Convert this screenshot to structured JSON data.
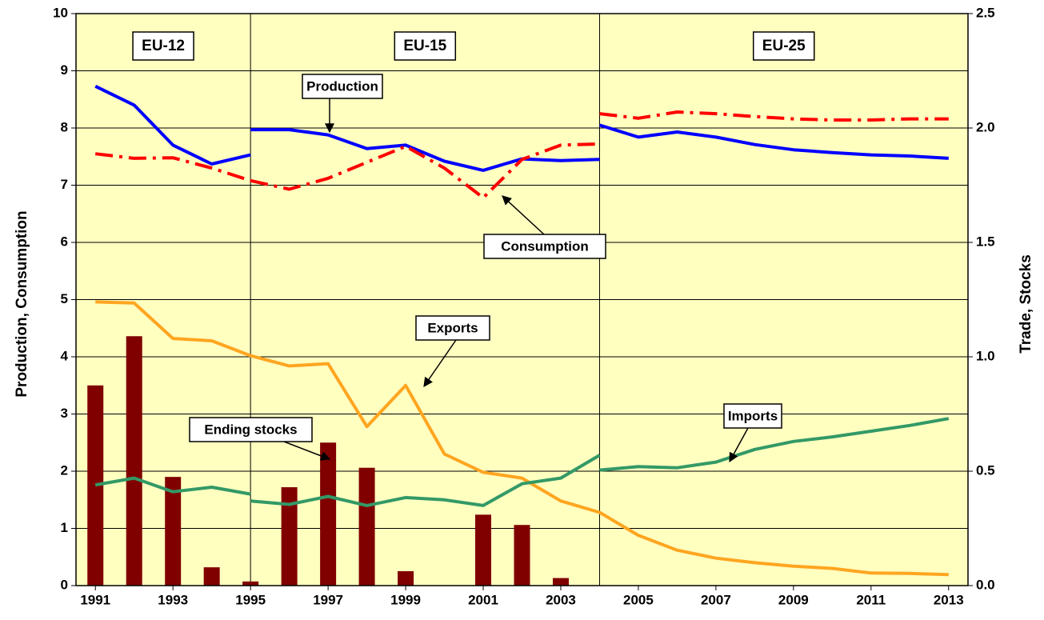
{
  "chart_data": {
    "type": "line",
    "ylabel": "Production, Consumption",
    "y2label": "Trade, Stocks",
    "xlim": [
      1990.5,
      2013.5
    ],
    "xticks": [
      1991,
      1993,
      1995,
      1997,
      1999,
      2001,
      2003,
      2005,
      2007,
      2009,
      2011,
      2013
    ],
    "ylim": [
      0,
      10
    ],
    "yticks": [
      0,
      1,
      2,
      3,
      4,
      5,
      6,
      7,
      8,
      9,
      10
    ],
    "y2lim": [
      0,
      2.5
    ],
    "y2ticks": [
      {
        "value": 0,
        "label": "0.0"
      },
      0.5,
      {
        "value": 1,
        "label": "1.0"
      },
      1.5,
      {
        "value": 2,
        "label": "2.0"
      },
      2.5
    ],
    "grid": true,
    "background": "#ffffc0",
    "regions": [
      "EU-12",
      "EU-15",
      "EU-25"
    ],
    "dividers": [
      1995,
      2004
    ],
    "series": [
      {
        "name": "Production",
        "type": "line",
        "color": "#0000ff",
        "dash": "solid",
        "x": [
          1991,
          1992,
          1993,
          1994,
          1995,
          null,
          1995,
          1996,
          1997,
          1998,
          1999,
          2000,
          2001,
          2002,
          2003,
          2004,
          null,
          2004,
          2005,
          2006,
          2007,
          2008,
          2009,
          2010,
          2011,
          2012,
          2013
        ],
        "values": [
          8.73,
          8.4,
          7.7,
          7.37,
          7.53,
          null,
          7.97,
          7.97,
          7.88,
          7.64,
          7.7,
          7.42,
          7.26,
          7.46,
          7.43,
          7.45,
          null,
          8.05,
          7.84,
          7.93,
          7.84,
          7.71,
          7.62,
          7.57,
          7.53,
          7.51,
          7.47
        ]
      },
      {
        "name": "Consumption",
        "type": "line",
        "color": "#ff0000",
        "dash": "dashdot",
        "x": [
          1991,
          1992,
          1993,
          1994,
          1995,
          null,
          1995,
          1996,
          1997,
          1998,
          1999,
          2000,
          2001,
          2002,
          2003,
          2004,
          null,
          2004,
          2005,
          2006,
          2007,
          2008,
          2009,
          2010,
          2011,
          2012,
          2013
        ],
        "values": [
          7.55,
          7.47,
          7.48,
          7.3,
          7.08,
          null,
          7.08,
          6.93,
          7.12,
          7.4,
          7.68,
          7.3,
          6.78,
          7.45,
          7.7,
          7.72,
          null,
          8.25,
          8.17,
          8.28,
          8.25,
          8.2,
          8.16,
          8.14,
          8.14,
          8.16,
          8.16
        ]
      },
      {
        "name": "Exports",
        "type": "line",
        "axis": "y2",
        "color": "#ffa520",
        "dash": "solid",
        "x": [
          1991,
          1992,
          1993,
          1994,
          1995,
          1996,
          1997,
          1998,
          1999,
          2000,
          2001,
          2002,
          2003,
          2004,
          2005,
          2006,
          2007,
          2008,
          2009,
          2010,
          2011,
          2012,
          2013
        ],
        "values": [
          1.24,
          1.235,
          1.08,
          1.07,
          1.005,
          0.96,
          0.97,
          0.695,
          0.875,
          0.575,
          0.495,
          0.47,
          0.37,
          0.32,
          0.22,
          0.155,
          0.12,
          0.1,
          0.085,
          0.075,
          0.055,
          0.053,
          0.048
        ]
      },
      {
        "name": "Imports",
        "type": "line",
        "axis": "y2",
        "color": "#339966",
        "dash": "solid",
        "x": [
          1991,
          1992,
          1993,
          1994,
          1995,
          null,
          1995,
          1996,
          1997,
          1998,
          1999,
          2000,
          2001,
          2002,
          2003,
          2004,
          null,
          2004,
          2005,
          2006,
          2007,
          2008,
          2009,
          2010,
          2011,
          2012,
          2013
        ],
        "values": [
          0.44,
          0.47,
          0.41,
          0.43,
          0.4,
          null,
          0.37,
          0.355,
          0.39,
          0.35,
          0.385,
          0.375,
          0.35,
          0.445,
          0.47,
          0.57,
          null,
          0.505,
          0.52,
          0.515,
          0.54,
          0.595,
          0.63,
          0.65,
          0.675,
          0.7,
          0.73
        ]
      },
      {
        "name": "Ending stocks",
        "type": "bar",
        "axis": "y2",
        "color": "#800000",
        "x": [
          1991,
          1992,
          1993,
          1994,
          1995,
          1996,
          1997,
          1998,
          1999,
          2000,
          2001,
          2002,
          2003
        ],
        "values": [
          0.875,
          1.09,
          0.475,
          0.08,
          0.018,
          0.43,
          0.625,
          0.515,
          0.063,
          0,
          0.31,
          0.265,
          0.033
        ]
      }
    ]
  }
}
